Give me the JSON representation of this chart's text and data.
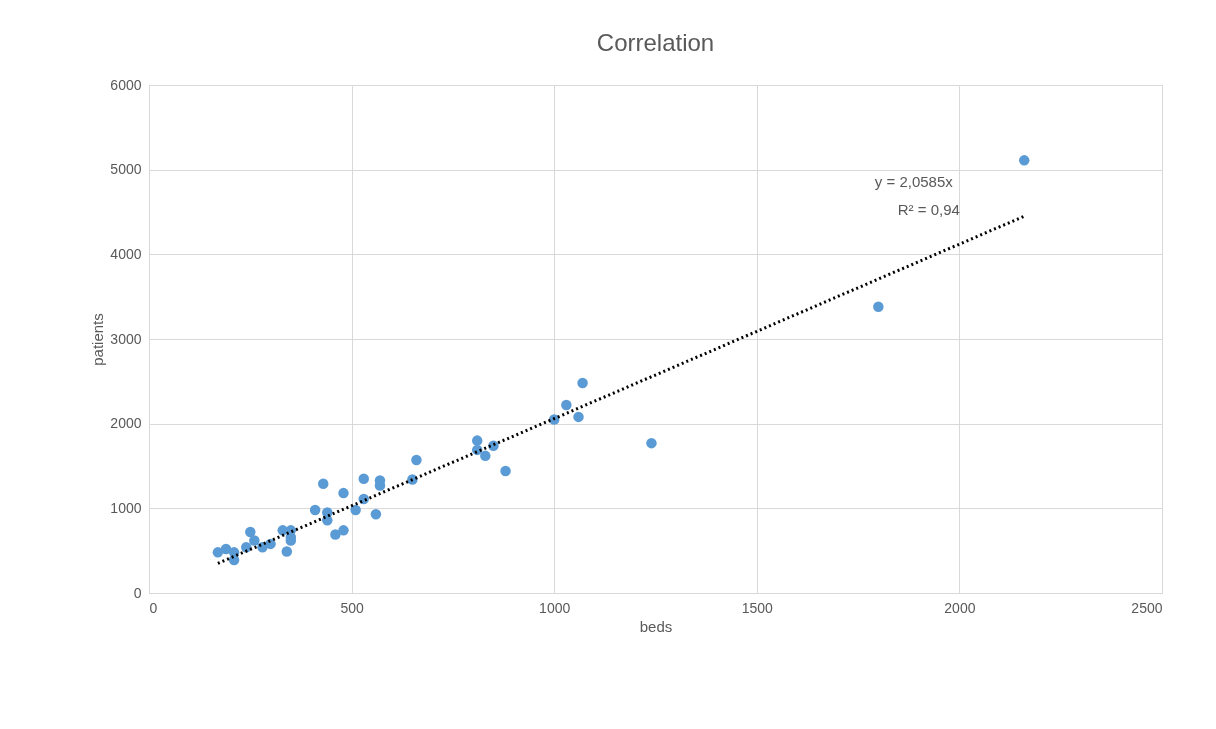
{
  "chart_data": {
    "type": "scatter",
    "title": "Correlation",
    "xlabel": "beds",
    "ylabel": "patients",
    "xlim": [
      0,
      2500
    ],
    "xticks": [
      0,
      500,
      1000,
      1500,
      2000,
      2500
    ],
    "ylim": [
      0,
      6000
    ],
    "yticks": [
      0,
      1000,
      2000,
      3000,
      4000,
      5000,
      6000
    ],
    "grid": true,
    "marker": "circle",
    "series": [
      {
        "color": "#5b9bd5",
        "x": [
          2160,
          1800,
          1070,
          1030,
          1060,
          1000,
          1240,
          810,
          850,
          830,
          810,
          880,
          660,
          650,
          570,
          570,
          530,
          480,
          430,
          530,
          510,
          560,
          410,
          440,
          440,
          480,
          460,
          350,
          350,
          340,
          330,
          250,
          260,
          280,
          240,
          210,
          210,
          190,
          170,
          300,
          350
        ],
        "values": [
          5110,
          3380,
          2480,
          2220,
          2080,
          2050,
          1770,
          1800,
          1740,
          1620,
          1690,
          1440,
          1570,
          1340,
          1330,
          1270,
          1350,
          1180,
          1290,
          1110,
          980,
          930,
          980,
          950,
          860,
          740,
          690,
          740,
          620,
          490,
          740,
          720,
          620,
          540,
          540,
          480,
          390,
          520,
          480,
          580,
          660
        ]
      },
      {
        "type": "line",
        "color": "#000000",
        "line_style": "dotted",
        "marker": "none",
        "x": [
          170,
          2160
        ],
        "values": [
          350,
          4450
        ]
      }
    ],
    "annotations": [
      "y = 2,0585x",
      "R² = 0,94"
    ]
  }
}
